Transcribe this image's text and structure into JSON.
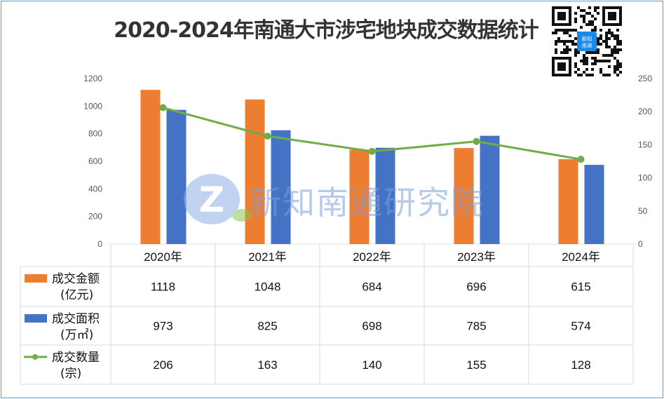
{
  "title": "2020-2024年南通大市涉宅地块成交数据统计",
  "watermark": "新知南通研究院",
  "qr_logo_text": "新知南通",
  "colors": {
    "amount": "#ed7d31",
    "area": "#4472c4",
    "count": "#70ad47",
    "frame": "#5b9bd5"
  },
  "chart_data": {
    "type": "bar",
    "categories": [
      "2020年",
      "2021年",
      "2022年",
      "2023年",
      "2024年"
    ],
    "series": [
      {
        "name": "成交金额",
        "unit": "(亿元)",
        "type": "bar",
        "axis": "left",
        "values": [
          1118,
          1048,
          684,
          696,
          615
        ]
      },
      {
        "name": "成交面积",
        "unit": "(万㎡)",
        "type": "bar",
        "axis": "left",
        "values": [
          973,
          825,
          698,
          785,
          574
        ]
      },
      {
        "name": "成交数量",
        "unit": "(宗)",
        "type": "line",
        "axis": "right",
        "values": [
          206,
          163,
          140,
          155,
          128
        ]
      }
    ],
    "ylim_left": [
      0,
      1200
    ],
    "yticks_left": [
      0,
      200,
      400,
      600,
      800,
      1000,
      1200
    ],
    "ylim_right": [
      0,
      250
    ],
    "yticks_right": [
      0,
      50,
      100,
      150,
      200,
      250
    ],
    "data_table": true,
    "grid": false
  }
}
